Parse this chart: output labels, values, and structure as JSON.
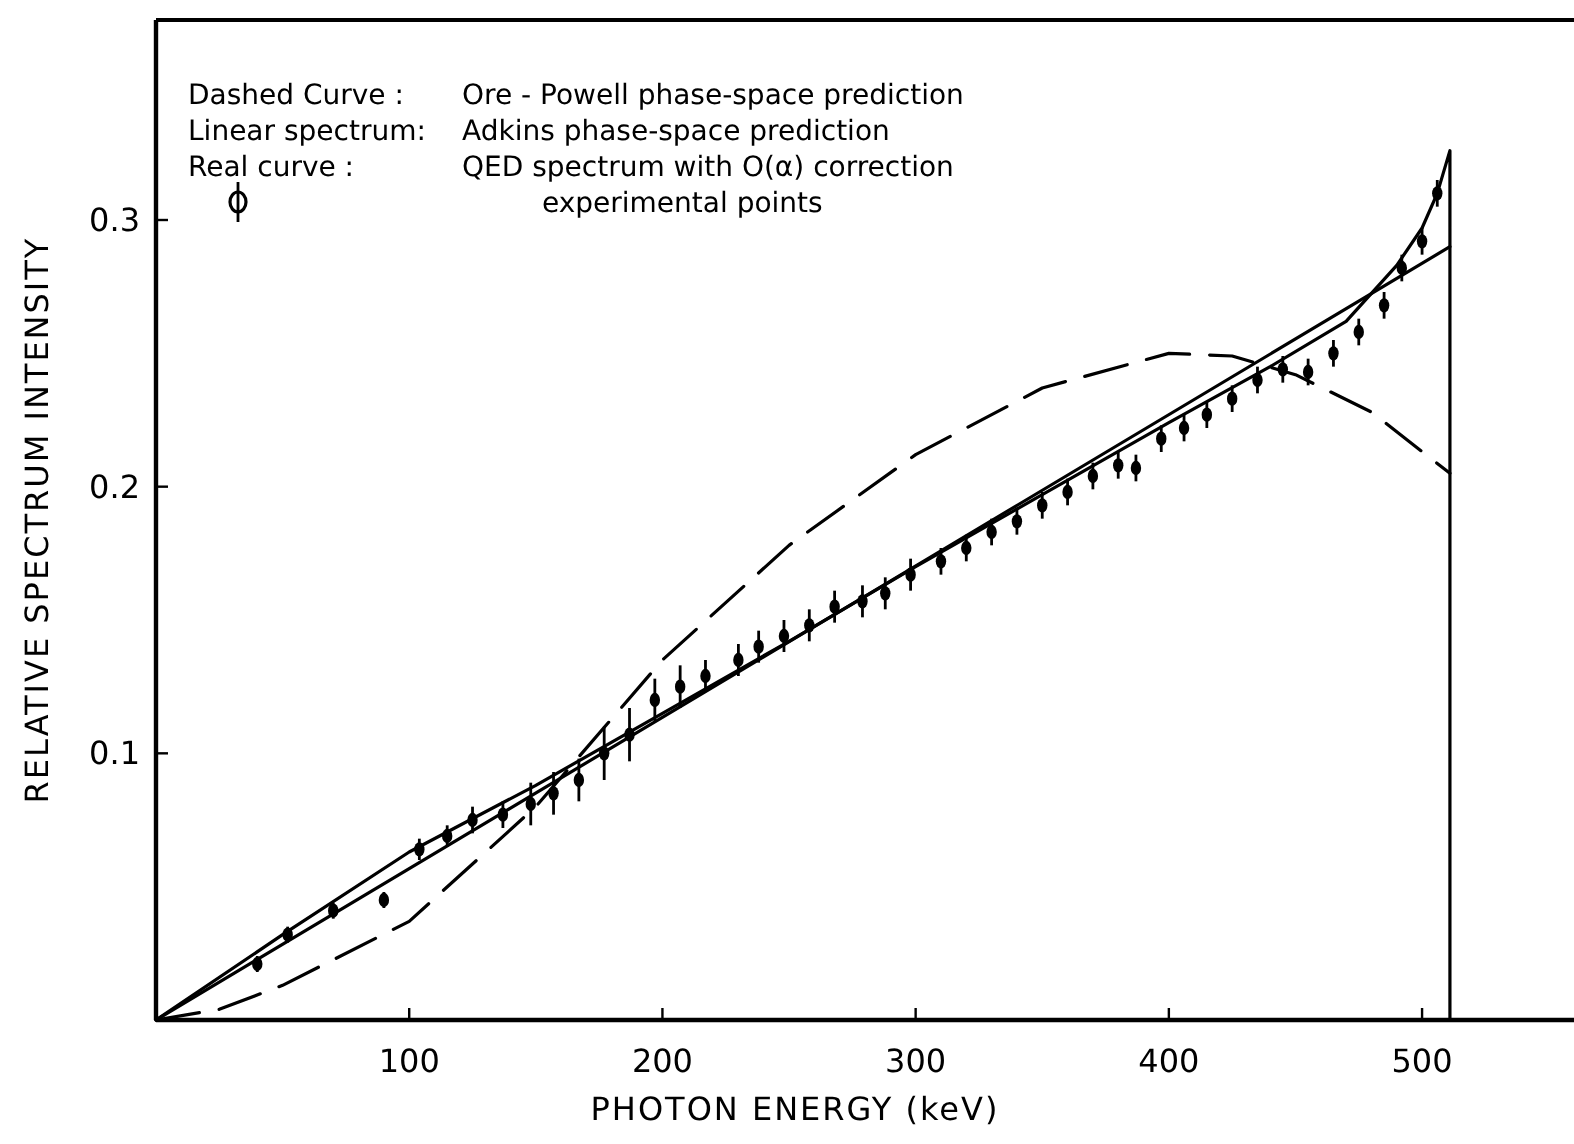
{
  "chart_data": {
    "type": "line",
    "xlabel": "PHOTON ENERGY (keV)",
    "ylabel": "RELATIVE SPECTRUM INTENSITY",
    "xlim": [
      0,
      560
    ],
    "ylim": [
      0,
      0.375
    ],
    "xticks": [
      100,
      200,
      300,
      400,
      500
    ],
    "yticks": [
      0.1,
      0.2,
      0.3
    ],
    "annotations": [
      "Dashed Curve :",
      "Ore - Powell phase-space prediction",
      "Linear spectrum:",
      "Adkins phase-space prediction",
      "Real curve :",
      "QED spectrum with O(α) correction",
      "experimental points"
    ],
    "series": [
      {
        "line_style": "dashed",
        "color": "#000000",
        "x": [
          0,
          25,
          50,
          100,
          150,
          200,
          250,
          300,
          350,
          400,
          425,
          450,
          480,
          511
        ],
        "values": [
          0,
          0.004,
          0.013,
          0.037,
          0.08,
          0.135,
          0.178,
          0.212,
          0.237,
          0.25,
          0.249,
          0.242,
          0.228,
          0.205
        ]
      },
      {
        "line_style": "solid",
        "color": "#000000",
        "x": [
          0,
          511
        ],
        "values": [
          0,
          0.29
        ]
      },
      {
        "line_style": "solid",
        "color": "#000000",
        "x": [
          0,
          50,
          100,
          150,
          200,
          250,
          300,
          350,
          400,
          440,
          470,
          490,
          500,
          506,
          511,
          511
        ],
        "values": [
          0,
          0.032,
          0.063,
          0.088,
          0.115,
          0.142,
          0.17,
          0.197,
          0.224,
          0.245,
          0.262,
          0.283,
          0.297,
          0.31,
          0.326,
          0
        ]
      },
      {
        "type": "scatter",
        "marker": "circle",
        "color": "#000000",
        "x": [
          40,
          52,
          70,
          90,
          104,
          115,
          125,
          137,
          148,
          157,
          167,
          177,
          187,
          197,
          207,
          217,
          230,
          238,
          248,
          258,
          268,
          279,
          288,
          298,
          310,
          320,
          330,
          340,
          350,
          360,
          370,
          380,
          387,
          397,
          406,
          415,
          425,
          435,
          445,
          455,
          465,
          475,
          485,
          492,
          500,
          506
        ],
        "values": [
          0.021,
          0.032,
          0.041,
          0.045,
          0.064,
          0.069,
          0.075,
          0.077,
          0.081,
          0.085,
          0.09,
          0.1,
          0.107,
          0.12,
          0.125,
          0.129,
          0.135,
          0.14,
          0.144,
          0.148,
          0.155,
          0.157,
          0.16,
          0.167,
          0.172,
          0.177,
          0.183,
          0.187,
          0.193,
          0.198,
          0.204,
          0.208,
          0.207,
          0.218,
          0.222,
          0.227,
          0.233,
          0.24,
          0.244,
          0.243,
          0.25,
          0.258,
          0.268,
          0.282,
          0.292,
          0.31
        ],
        "errors": [
          0.003,
          0.003,
          0.003,
          0.003,
          0.004,
          0.004,
          0.005,
          0.005,
          0.008,
          0.008,
          0.008,
          0.01,
          0.01,
          0.008,
          0.008,
          0.006,
          0.006,
          0.006,
          0.006,
          0.006,
          0.006,
          0.006,
          0.006,
          0.006,
          0.005,
          0.005,
          0.005,
          0.005,
          0.005,
          0.005,
          0.005,
          0.005,
          0.005,
          0.005,
          0.005,
          0.005,
          0.005,
          0.005,
          0.005,
          0.005,
          0.005,
          0.005,
          0.005,
          0.005,
          0.005,
          0.005
        ]
      }
    ]
  }
}
